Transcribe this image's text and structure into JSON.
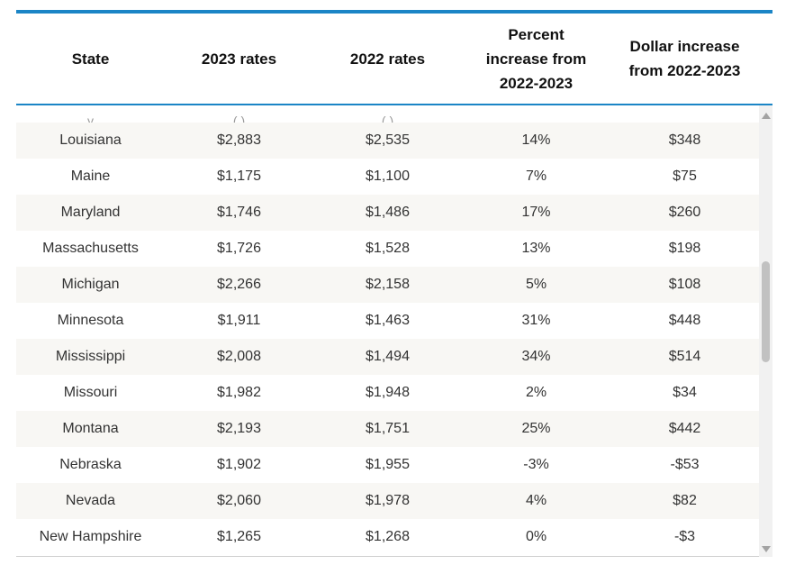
{
  "headers": {
    "state": "State",
    "rates_2023": "2023 rates",
    "rates_2022": "2022 rates",
    "percent": "Percent\nincrease from\n2022-2023",
    "dollar": "Dollar increase\nfrom 2022-2023"
  },
  "rows": [
    {
      "state": "Louisiana",
      "r2023": "$2,883",
      "r2022": "$2,535",
      "pct": "14%",
      "dollar": "$348"
    },
    {
      "state": "Maine",
      "r2023": "$1,175",
      "r2022": "$1,100",
      "pct": "7%",
      "dollar": "$75"
    },
    {
      "state": "Maryland",
      "r2023": "$1,746",
      "r2022": "$1,486",
      "pct": "17%",
      "dollar": "$260"
    },
    {
      "state": "Massachusetts",
      "r2023": "$1,726",
      "r2022": "$1,528",
      "pct": "13%",
      "dollar": "$198"
    },
    {
      "state": "Michigan",
      "r2023": "$2,266",
      "r2022": "$2,158",
      "pct": "5%",
      "dollar": "$108"
    },
    {
      "state": "Minnesota",
      "r2023": "$1,911",
      "r2022": "$1,463",
      "pct": "31%",
      "dollar": "$448"
    },
    {
      "state": "Mississippi",
      "r2023": "$2,008",
      "r2022": "$1,494",
      "pct": "34%",
      "dollar": "$514"
    },
    {
      "state": "Missouri",
      "r2023": "$1,982",
      "r2022": "$1,948",
      "pct": "2%",
      "dollar": "$34"
    },
    {
      "state": "Montana",
      "r2023": "$2,193",
      "r2022": "$1,751",
      "pct": "25%",
      "dollar": "$442"
    },
    {
      "state": "Nebraska",
      "r2023": "$1,902",
      "r2022": "$1,955",
      "pct": "-3%",
      "dollar": "-$53"
    },
    {
      "state": "Nevada",
      "r2023": "$2,060",
      "r2022": "$1,978",
      "pct": "4%",
      "dollar": "$82"
    },
    {
      "state": "New Hampshire",
      "r2023": "$1,265",
      "r2022": "$1,268",
      "pct": "0%",
      "dollar": "-$3"
    }
  ]
}
